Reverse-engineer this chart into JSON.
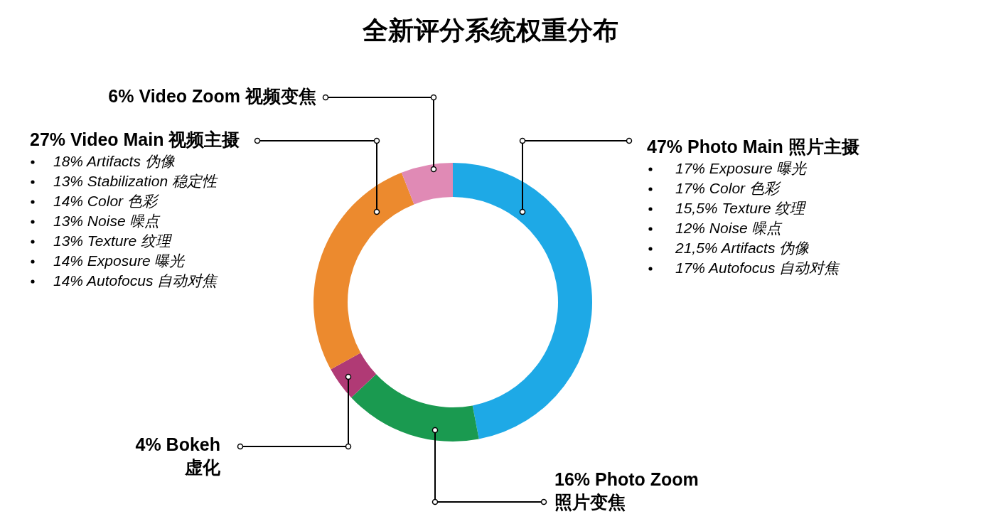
{
  "chart_data": {
    "type": "donut",
    "title": "全新评分系统权重分布",
    "categories": [
      "Photo Main 照片主摄",
      "Photo Zoom 照片变焦",
      "Bokeh 虚化",
      "Video Main 视频主摄",
      "Video Zoom 视频变焦"
    ],
    "values": [
      47,
      16,
      4,
      27,
      6
    ],
    "value_labels": [
      "47%",
      "16%",
      "4%",
      "27%",
      "6%"
    ],
    "colors": [
      "#1ea9e6",
      "#1a9a50",
      "#b03a75",
      "#ec8a2e",
      "#e08ab5"
    ],
    "annotations": [
      {
        "text": "17% Exposure 曝光",
        "x": "Photo Main 照片主摄"
      },
      {
        "text": "17% Color 色彩",
        "x": "Photo Main 照片主摄"
      },
      {
        "text": "15,5% Texture 纹理",
        "x": "Photo Main 照片主摄"
      },
      {
        "text": "12% Noise 噪点",
        "x": "Photo Main 照片主摄"
      },
      {
        "text": "21,5% Artifacts 伪像",
        "x": "Photo Main 照片主摄"
      },
      {
        "text": "17% Autofocus 自动对焦",
        "x": "Photo Main 照片主摄"
      },
      {
        "text": "18% Artifacts 伪像",
        "x": "Video Main 视频主摄"
      },
      {
        "text": "13% Stabilization 稳定性",
        "x": "Video Main 视频主摄"
      },
      {
        "text": "14% Color 色彩",
        "x": "Video Main 视频主摄"
      },
      {
        "text": "13% Noise 噪点",
        "x": "Video Main 视频主摄"
      },
      {
        "text": "13% Texture 纹理",
        "x": "Video Main 视频主摄"
      },
      {
        "text": "14% Exposure 曝光",
        "x": "Video Main 视频主摄"
      },
      {
        "text": "14% Autofocus 自动对焦",
        "x": "Video Main 视频主摄"
      }
    ]
  }
}
